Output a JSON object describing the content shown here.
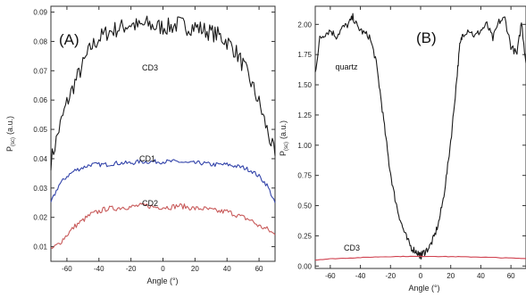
{
  "chart_data": [
    {
      "type": "line",
      "panel_label": "(A)",
      "xlabel": "Angle (°)",
      "ylabel_main": "P",
      "ylabel_sub": "(sc)",
      "ylabel_unit": "(a.u.)",
      "xlim": [
        -70,
        70
      ],
      "ylim": [
        0.005,
        0.092
      ],
      "xticks": [
        "-60",
        "-40",
        "-20",
        "0",
        "20",
        "40",
        "60"
      ],
      "yticks": [
        "0.01",
        "0.02",
        "0.03",
        "0.04",
        "0.05",
        "0.06",
        "0.07",
        "0.08",
        "0.09"
      ],
      "series": [
        {
          "name": "CD3",
          "color": "#1a1a1a",
          "x": [
            -70,
            -65,
            -60,
            -55,
            -50,
            -45,
            -40,
            -35,
            -30,
            -25,
            -20,
            -15,
            -10,
            -5,
            0,
            5,
            10,
            15,
            20,
            25,
            30,
            35,
            40,
            45,
            50,
            55,
            60,
            65,
            70
          ],
          "y": [
            0.039,
            0.05,
            0.059,
            0.066,
            0.072,
            0.078,
            0.081,
            0.083,
            0.084,
            0.085,
            0.086,
            0.085,
            0.086,
            0.085,
            0.085,
            0.085,
            0.086,
            0.085,
            0.085,
            0.084,
            0.083,
            0.082,
            0.08,
            0.077,
            0.072,
            0.066,
            0.059,
            0.05,
            0.041
          ]
        },
        {
          "name": "CD1",
          "color": "#3344aa",
          "x": [
            -70,
            -65,
            -60,
            -55,
            -50,
            -45,
            -40,
            -35,
            -30,
            -25,
            -20,
            -15,
            -10,
            -5,
            0,
            5,
            10,
            15,
            20,
            25,
            30,
            35,
            40,
            45,
            50,
            55,
            60,
            65,
            70
          ],
          "y": [
            0.025,
            0.031,
            0.034,
            0.036,
            0.037,
            0.038,
            0.038,
            0.038,
            0.0385,
            0.0385,
            0.0385,
            0.039,
            0.039,
            0.039,
            0.039,
            0.039,
            0.039,
            0.0385,
            0.0385,
            0.0385,
            0.038,
            0.038,
            0.038,
            0.0375,
            0.037,
            0.036,
            0.034,
            0.031,
            0.025
          ]
        },
        {
          "name": "CD2",
          "color": "#c85a5a",
          "x": [
            -70,
            -65,
            -60,
            -55,
            -50,
            -45,
            -40,
            -35,
            -30,
            -25,
            -20,
            -15,
            -10,
            -5,
            0,
            5,
            10,
            15,
            20,
            25,
            30,
            35,
            40,
            45,
            50,
            55,
            60,
            65,
            70
          ],
          "y": [
            0.009,
            0.011,
            0.014,
            0.017,
            0.019,
            0.021,
            0.022,
            0.023,
            0.023,
            0.0235,
            0.0235,
            0.024,
            0.024,
            0.0235,
            0.0235,
            0.0235,
            0.024,
            0.0235,
            0.023,
            0.023,
            0.0225,
            0.022,
            0.022,
            0.021,
            0.02,
            0.019,
            0.017,
            0.016,
            0.014
          ]
        }
      ]
    },
    {
      "type": "line",
      "panel_label": "(B)",
      "xlabel": "Angle (°)",
      "ylabel_main": "P",
      "ylabel_sub": "(sc)",
      "ylabel_unit": "(a.u.)",
      "xlim": [
        -70,
        70
      ],
      "ylim": [
        -0.02,
        2.15
      ],
      "xticks": [
        "-60",
        "-40",
        "-20",
        "0",
        "20",
        "40",
        "60"
      ],
      "yticks": [
        "0.00",
        "0.25",
        "0.50",
        "0.75",
        "1.00",
        "1.25",
        "1.50",
        "1.75",
        "2.00"
      ],
      "series": [
        {
          "name": "quartz",
          "color": "#1a1a1a",
          "x": [
            -70,
            -67,
            -64,
            -60,
            -56,
            -52,
            -48,
            -45,
            -42,
            -38,
            -34,
            -30,
            -27,
            -24,
            -21,
            -18,
            -15,
            -12,
            -9,
            -6,
            -3,
            -1,
            0,
            1,
            3,
            6,
            9,
            12,
            15,
            18,
            21,
            24,
            26,
            28,
            32,
            36,
            40,
            44,
            48,
            52,
            56,
            60,
            64,
            67,
            70
          ],
          "y": [
            1.6,
            1.88,
            1.92,
            1.95,
            1.9,
            1.97,
            2.0,
            2.06,
            1.98,
            1.93,
            1.9,
            1.72,
            1.45,
            1.15,
            0.85,
            0.62,
            0.45,
            0.32,
            0.22,
            0.15,
            0.12,
            0.1,
            0.08,
            0.1,
            0.12,
            0.16,
            0.24,
            0.36,
            0.55,
            0.82,
            1.15,
            1.55,
            1.82,
            1.92,
            1.96,
            1.9,
            1.95,
            2.0,
            1.88,
            2.02,
            2.05,
            1.82,
            1.75,
            2.02,
            1.68
          ]
        },
        {
          "name": "CD3",
          "color": "#d0414f",
          "x": [
            -70,
            -60,
            -50,
            -40,
            -30,
            -20,
            -10,
            0,
            10,
            20,
            30,
            40,
            50,
            60,
            70
          ],
          "y": [
            0.05,
            0.06,
            0.065,
            0.07,
            0.075,
            0.078,
            0.08,
            0.08,
            0.08,
            0.078,
            0.076,
            0.074,
            0.07,
            0.066,
            0.062
          ]
        }
      ]
    }
  ]
}
